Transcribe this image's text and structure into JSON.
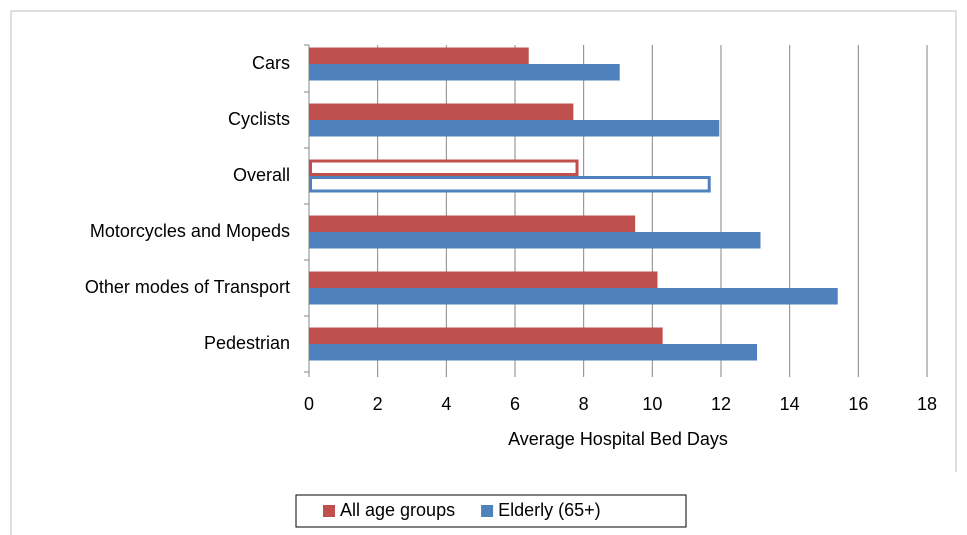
{
  "chart_data": {
    "type": "hbar",
    "categories": [
      "Cars",
      "Cyclists",
      "Overall",
      "Motorcycles and Mopeds",
      "Other modes of Transport",
      "Pedestrian"
    ],
    "series": [
      {
        "name": "All age groups",
        "color": "#c0504d",
        "values": [
          6.4,
          7.7,
          7.85,
          9.5,
          10.15,
          10.3
        ]
      },
      {
        "name": "Elderly (65+)",
        "color": "#4f81bd",
        "values": [
          9.05,
          11.95,
          11.7,
          13.15,
          15.4,
          13.05
        ]
      }
    ],
    "outline_category": "Overall",
    "xlabel": "Average Hospital Bed Days",
    "xlim": [
      0,
      18
    ],
    "xticks": [
      0,
      2,
      4,
      6,
      8,
      10,
      12,
      14,
      16,
      18
    ],
    "grid": true,
    "legend": "bottom"
  }
}
